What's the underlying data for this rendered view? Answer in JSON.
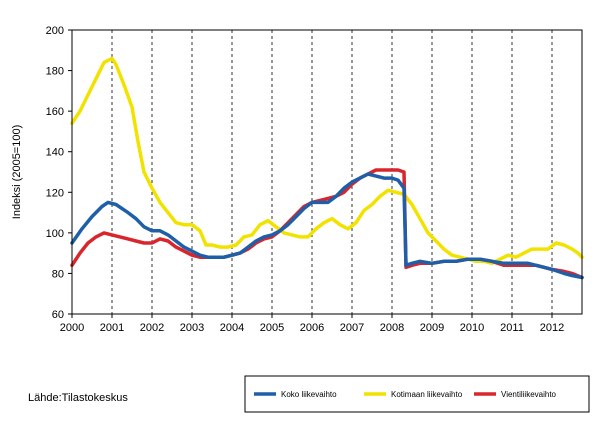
{
  "source_label": "Lähde:Tilastokeskus",
  "chart_data": {
    "type": "line",
    "title": "",
    "xlabel": "",
    "ylabel": "Indeksi (2005=100)",
    "ylim": [
      60,
      200
    ],
    "yticks": [
      60,
      80,
      100,
      120,
      140,
      160,
      180,
      200
    ],
    "xlim": [
      2000,
      2012.75
    ],
    "xtick_labels": [
      "2000",
      "2001",
      "2002",
      "2003",
      "2004",
      "2005",
      "2006",
      "2007",
      "2008",
      "2009",
      "2010",
      "2011",
      "2012"
    ],
    "grid": "vertical dashed at years",
    "legend_position": "bottom-right",
    "series": [
      {
        "name": "Koko liikevaihto",
        "color": "#1f5fa8",
        "points": [
          [
            2000.0,
            95
          ],
          [
            2000.25,
            102
          ],
          [
            2000.5,
            108
          ],
          [
            2000.75,
            113
          ],
          [
            2000.9,
            115
          ],
          [
            2001.1,
            114
          ],
          [
            2001.4,
            110
          ],
          [
            2001.6,
            107
          ],
          [
            2001.8,
            103
          ],
          [
            2002.0,
            101
          ],
          [
            2002.2,
            101
          ],
          [
            2002.4,
            99
          ],
          [
            2002.6,
            96
          ],
          [
            2002.8,
            93
          ],
          [
            2003.0,
            91
          ],
          [
            2003.2,
            89
          ],
          [
            2003.4,
            88
          ],
          [
            2003.6,
            88
          ],
          [
            2003.8,
            88
          ],
          [
            2004.0,
            89
          ],
          [
            2004.2,
            90
          ],
          [
            2004.4,
            93
          ],
          [
            2004.6,
            96
          ],
          [
            2004.8,
            98
          ],
          [
            2005.0,
            99
          ],
          [
            2005.2,
            101
          ],
          [
            2005.4,
            104
          ],
          [
            2005.6,
            108
          ],
          [
            2005.8,
            112
          ],
          [
            2006.0,
            115
          ],
          [
            2006.2,
            115
          ],
          [
            2006.4,
            115
          ],
          [
            2006.6,
            118
          ],
          [
            2006.8,
            122
          ],
          [
            2007.0,
            125
          ],
          [
            2007.2,
            127
          ],
          [
            2007.4,
            129
          ],
          [
            2007.6,
            128
          ],
          [
            2007.8,
            127
          ],
          [
            2008.0,
            127
          ],
          [
            2008.15,
            126
          ],
          [
            2008.3,
            122
          ],
          [
            2008.35,
            84
          ],
          [
            2008.5,
            85
          ],
          [
            2008.7,
            86
          ],
          [
            2009.0,
            85
          ],
          [
            2009.3,
            86
          ],
          [
            2009.6,
            86
          ],
          [
            2009.9,
            87
          ],
          [
            2010.2,
            87
          ],
          [
            2010.5,
            86
          ],
          [
            2010.8,
            85
          ],
          [
            2011.0,
            85
          ],
          [
            2011.2,
            85
          ],
          [
            2011.4,
            85
          ],
          [
            2011.6,
            84
          ],
          [
            2011.8,
            83
          ],
          [
            2012.0,
            82
          ],
          [
            2012.3,
            80
          ],
          [
            2012.5,
            79
          ],
          [
            2012.75,
            78
          ]
        ]
      },
      {
        "name": "Kotimaan liikevaihto",
        "color": "#f2e200",
        "points": [
          [
            2000.0,
            154
          ],
          [
            2000.2,
            160
          ],
          [
            2000.4,
            168
          ],
          [
            2000.6,
            176
          ],
          [
            2000.8,
            184
          ],
          [
            2001.0,
            186
          ],
          [
            2001.1,
            183
          ],
          [
            2001.3,
            173
          ],
          [
            2001.5,
            162
          ],
          [
            2001.65,
            145
          ],
          [
            2001.8,
            130
          ],
          [
            2002.0,
            122
          ],
          [
            2002.2,
            115
          ],
          [
            2002.4,
            110
          ],
          [
            2002.6,
            105
          ],
          [
            2002.8,
            104
          ],
          [
            2003.0,
            104
          ],
          [
            2003.2,
            101
          ],
          [
            2003.35,
            94
          ],
          [
            2003.5,
            94
          ],
          [
            2003.7,
            93
          ],
          [
            2003.9,
            93
          ],
          [
            2004.1,
            94
          ],
          [
            2004.3,
            98
          ],
          [
            2004.5,
            99
          ],
          [
            2004.7,
            104
          ],
          [
            2004.9,
            106
          ],
          [
            2005.1,
            103
          ],
          [
            2005.3,
            100
          ],
          [
            2005.5,
            99
          ],
          [
            2005.7,
            98
          ],
          [
            2005.9,
            98
          ],
          [
            2006.1,
            102
          ],
          [
            2006.3,
            105
          ],
          [
            2006.5,
            107
          ],
          [
            2006.7,
            104
          ],
          [
            2006.9,
            102
          ],
          [
            2007.1,
            105
          ],
          [
            2007.3,
            111
          ],
          [
            2007.5,
            114
          ],
          [
            2007.7,
            118
          ],
          [
            2007.9,
            121
          ],
          [
            2008.1,
            120
          ],
          [
            2008.3,
            119
          ],
          [
            2008.5,
            114
          ],
          [
            2008.7,
            107
          ],
          [
            2008.9,
            100
          ],
          [
            2009.1,
            96
          ],
          [
            2009.3,
            92
          ],
          [
            2009.5,
            89
          ],
          [
            2009.7,
            88
          ],
          [
            2009.9,
            87
          ],
          [
            2010.1,
            86
          ],
          [
            2010.3,
            86
          ],
          [
            2010.5,
            85
          ],
          [
            2010.7,
            87
          ],
          [
            2010.9,
            89
          ],
          [
            2011.1,
            88
          ],
          [
            2011.3,
            90
          ],
          [
            2011.5,
            92
          ],
          [
            2011.7,
            92
          ],
          [
            2011.9,
            92
          ],
          [
            2012.1,
            95
          ],
          [
            2012.3,
            94
          ],
          [
            2012.5,
            92
          ],
          [
            2012.65,
            90
          ],
          [
            2012.75,
            88
          ]
        ]
      },
      {
        "name": "Vientiliikevaihto",
        "color": "#d9262c",
        "points": [
          [
            2000.0,
            84
          ],
          [
            2000.2,
            90
          ],
          [
            2000.4,
            95
          ],
          [
            2000.6,
            98
          ],
          [
            2000.8,
            100
          ],
          [
            2001.0,
            99
          ],
          [
            2001.2,
            98
          ],
          [
            2001.4,
            97
          ],
          [
            2001.6,
            96
          ],
          [
            2001.8,
            95
          ],
          [
            2002.0,
            95
          ],
          [
            2002.2,
            97
          ],
          [
            2002.4,
            96
          ],
          [
            2002.6,
            93
          ],
          [
            2002.8,
            91
          ],
          [
            2003.0,
            89
          ],
          [
            2003.2,
            88
          ],
          [
            2003.4,
            88
          ],
          [
            2003.6,
            88
          ],
          [
            2003.8,
            88
          ],
          [
            2004.0,
            89
          ],
          [
            2004.2,
            90
          ],
          [
            2004.4,
            92
          ],
          [
            2004.6,
            95
          ],
          [
            2004.8,
            97
          ],
          [
            2005.0,
            98
          ],
          [
            2005.2,
            101
          ],
          [
            2005.4,
            105
          ],
          [
            2005.6,
            109
          ],
          [
            2005.8,
            113
          ],
          [
            2006.0,
            115
          ],
          [
            2006.2,
            116
          ],
          [
            2006.4,
            117
          ],
          [
            2006.6,
            118
          ],
          [
            2006.8,
            120
          ],
          [
            2007.0,
            124
          ],
          [
            2007.2,
            127
          ],
          [
            2007.4,
            129
          ],
          [
            2007.6,
            131
          ],
          [
            2007.8,
            131
          ],
          [
            2008.0,
            131
          ],
          [
            2008.15,
            131
          ],
          [
            2008.3,
            130
          ],
          [
            2008.35,
            83
          ],
          [
            2008.5,
            84
          ],
          [
            2008.7,
            85
          ],
          [
            2009.0,
            85
          ],
          [
            2009.3,
            86
          ],
          [
            2009.6,
            86
          ],
          [
            2009.9,
            87
          ],
          [
            2010.2,
            87
          ],
          [
            2010.5,
            86
          ],
          [
            2010.8,
            84
          ],
          [
            2011.0,
            84
          ],
          [
            2011.2,
            84
          ],
          [
            2011.4,
            84
          ],
          [
            2011.6,
            84
          ],
          [
            2011.8,
            83
          ],
          [
            2012.0,
            82
          ],
          [
            2012.3,
            81
          ],
          [
            2012.5,
            80
          ],
          [
            2012.75,
            78
          ]
        ]
      }
    ]
  }
}
